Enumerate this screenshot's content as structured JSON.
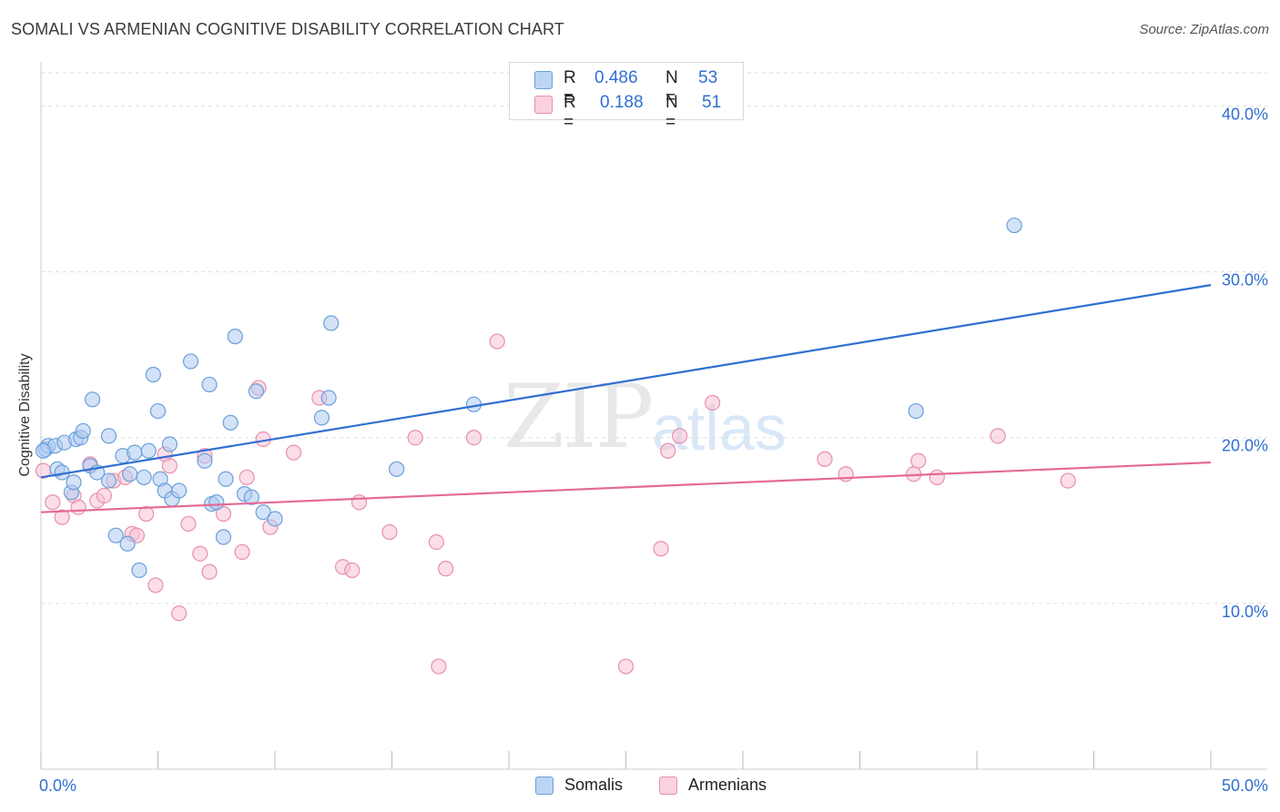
{
  "header": {
    "title": "SOMALI VS ARMENIAN COGNITIVE DISABILITY CORRELATION CHART",
    "source": "Source: ZipAtlas.com"
  },
  "watermark": {
    "zip": "ZIP",
    "atlas": "atlas"
  },
  "legend_stats": {
    "somalis": {
      "r_label": "R =",
      "r_value": "0.486",
      "n_label": "N =",
      "n_value": "53"
    },
    "armenians": {
      "r_label": "R =",
      "r_value": "0.188",
      "n_label": "N =",
      "n_value": "51"
    }
  },
  "colors": {
    "somalis_fill": "#aecbf0",
    "somalis_stroke": "#6a9fdc",
    "somalis_line": "#2f6fd1",
    "armenians_fill": "#f7c3d3",
    "armenians_stroke": "#e88fae",
    "armenians_line": "#e46a96",
    "grid": "#dddddd",
    "tick_label": "#2f6fd1"
  },
  "chart_data": {
    "type": "scatter",
    "title": "SOMALI VS ARMENIAN COGNITIVE DISABILITY CORRELATION CHART",
    "xlabel": "",
    "ylabel": "Cognitive Disability",
    "xlim": [
      0,
      50
    ],
    "ylim": [
      0,
      42
    ],
    "x_tick_labels": [
      "0.0%",
      "50.0%"
    ],
    "y_ticks": [
      10,
      20,
      30,
      40
    ],
    "y_tick_labels": [
      "10.0%",
      "20.0%",
      "30.0%",
      "40.0%"
    ],
    "grid": "horizontal dashed",
    "legend": "bottom-center",
    "series": [
      {
        "name": "Somalis",
        "points": [
          [
            0.2,
            19.3
          ],
          [
            0.3,
            19.5
          ],
          [
            0.6,
            19.5
          ],
          [
            0.7,
            18.1
          ],
          [
            0.9,
            17.9
          ],
          [
            1.0,
            19.7
          ],
          [
            1.3,
            16.7
          ],
          [
            1.5,
            19.9
          ],
          [
            1.7,
            20.0
          ],
          [
            1.8,
            20.4
          ],
          [
            2.1,
            18.3
          ],
          [
            2.2,
            22.3
          ],
          [
            2.4,
            17.9
          ],
          [
            2.9,
            17.4
          ],
          [
            2.9,
            20.1
          ],
          [
            3.2,
            14.1
          ],
          [
            3.5,
            18.9
          ],
          [
            3.7,
            13.6
          ],
          [
            3.8,
            17.8
          ],
          [
            4.0,
            19.1
          ],
          [
            4.2,
            12.0
          ],
          [
            4.4,
            17.6
          ],
          [
            4.6,
            19.2
          ],
          [
            4.8,
            23.8
          ],
          [
            5.0,
            21.6
          ],
          [
            5.1,
            17.5
          ],
          [
            5.3,
            16.8
          ],
          [
            5.5,
            19.6
          ],
          [
            5.6,
            16.3
          ],
          [
            5.9,
            16.8
          ],
          [
            6.4,
            24.6
          ],
          [
            7.0,
            18.6
          ],
          [
            7.2,
            23.2
          ],
          [
            7.3,
            16.0
          ],
          [
            7.5,
            16.1
          ],
          [
            7.8,
            14.0
          ],
          [
            7.9,
            17.5
          ],
          [
            8.1,
            20.9
          ],
          [
            8.3,
            26.1
          ],
          [
            8.7,
            16.6
          ],
          [
            9.0,
            16.4
          ],
          [
            9.2,
            22.8
          ],
          [
            9.5,
            15.5
          ],
          [
            10.0,
            15.1
          ],
          [
            12.0,
            21.2
          ],
          [
            12.3,
            22.4
          ],
          [
            12.4,
            26.9
          ],
          [
            15.2,
            18.1
          ],
          [
            18.5,
            22.0
          ],
          [
            37.4,
            21.6
          ],
          [
            41.6,
            32.8
          ],
          [
            0.1,
            19.2
          ],
          [
            1.4,
            17.3
          ]
        ]
      },
      {
        "name": "Armenians",
        "points": [
          [
            0.1,
            18.0
          ],
          [
            0.5,
            16.1
          ],
          [
            0.9,
            15.2
          ],
          [
            1.4,
            16.5
          ],
          [
            1.6,
            15.8
          ],
          [
            2.1,
            18.4
          ],
          [
            2.4,
            16.2
          ],
          [
            2.7,
            16.5
          ],
          [
            3.1,
            17.4
          ],
          [
            3.6,
            17.6
          ],
          [
            3.9,
            14.2
          ],
          [
            4.1,
            14.1
          ],
          [
            4.5,
            15.4
          ],
          [
            4.9,
            11.1
          ],
          [
            5.3,
            19.0
          ],
          [
            5.5,
            18.3
          ],
          [
            5.9,
            9.4
          ],
          [
            6.3,
            14.8
          ],
          [
            6.8,
            13.0
          ],
          [
            7.0,
            18.9
          ],
          [
            7.2,
            11.9
          ],
          [
            7.8,
            15.4
          ],
          [
            8.6,
            13.1
          ],
          [
            8.8,
            17.6
          ],
          [
            9.3,
            23.0
          ],
          [
            9.5,
            19.9
          ],
          [
            9.8,
            14.6
          ],
          [
            10.8,
            19.1
          ],
          [
            11.9,
            22.4
          ],
          [
            12.9,
            12.2
          ],
          [
            13.3,
            12.0
          ],
          [
            13.6,
            16.1
          ],
          [
            14.9,
            14.3
          ],
          [
            16.0,
            20.0
          ],
          [
            16.9,
            13.7
          ],
          [
            17.0,
            6.2
          ],
          [
            17.3,
            12.1
          ],
          [
            18.5,
            20.0
          ],
          [
            19.5,
            25.8
          ],
          [
            25.0,
            6.2
          ],
          [
            26.5,
            13.3
          ],
          [
            26.8,
            19.2
          ],
          [
            27.3,
            20.1
          ],
          [
            28.7,
            22.1
          ],
          [
            33.5,
            18.7
          ],
          [
            34.4,
            17.8
          ],
          [
            37.3,
            17.8
          ],
          [
            37.5,
            18.6
          ],
          [
            38.3,
            17.6
          ],
          [
            40.9,
            20.1
          ],
          [
            43.9,
            17.4
          ]
        ]
      }
    ],
    "trendlines": [
      {
        "name": "Somalis",
        "x": [
          0,
          50
        ],
        "y": [
          17.6,
          29.2
        ]
      },
      {
        "name": "Armenians",
        "x": [
          0,
          50
        ],
        "y": [
          15.5,
          18.5
        ]
      }
    ]
  },
  "bottom_legend": {
    "somalis": "Somalis",
    "armenians": "Armenians"
  }
}
